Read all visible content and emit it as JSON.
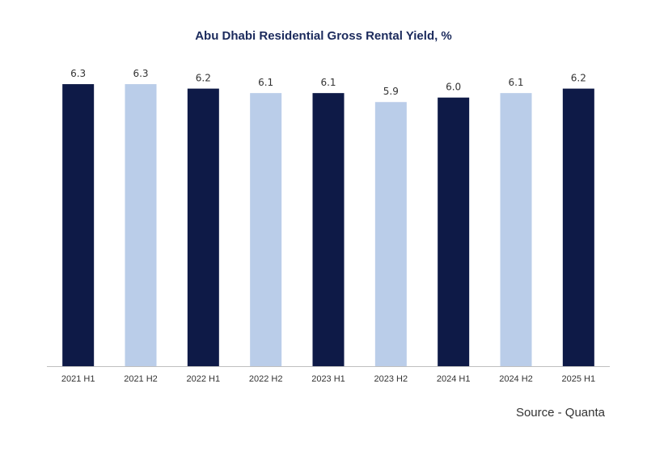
{
  "chart_data": {
    "type": "bar",
    "title": "Abu Dhabi Residential Gross Rental Yield, %",
    "categories": [
      "2021 H1",
      "2021 H2",
      "2022 H1",
      "2022 H2",
      "2023 H1",
      "2023 H2",
      "2024 H1",
      "2024 H2",
      "2025 H1"
    ],
    "values": [
      6.3,
      6.3,
      6.2,
      6.1,
      6.1,
      5.9,
      6.0,
      6.1,
      6.2
    ],
    "value_labels": [
      "6.3",
      "6.3",
      "6.2",
      "6.1",
      "6.1",
      "5.9",
      "6.0",
      "6.1",
      "6.2"
    ],
    "xlabel": "",
    "ylabel": "",
    "ylim": [
      0,
      6.5
    ],
    "grid": false,
    "legend": "none",
    "colors": {
      "dark": "#0e1a47",
      "light": "#bacde9",
      "axis": "#bfbfbf"
    },
    "bar_color_pattern": [
      "dark",
      "light",
      "dark",
      "light",
      "dark",
      "light",
      "dark",
      "light",
      "dark"
    ]
  },
  "source": "Source - Quanta"
}
